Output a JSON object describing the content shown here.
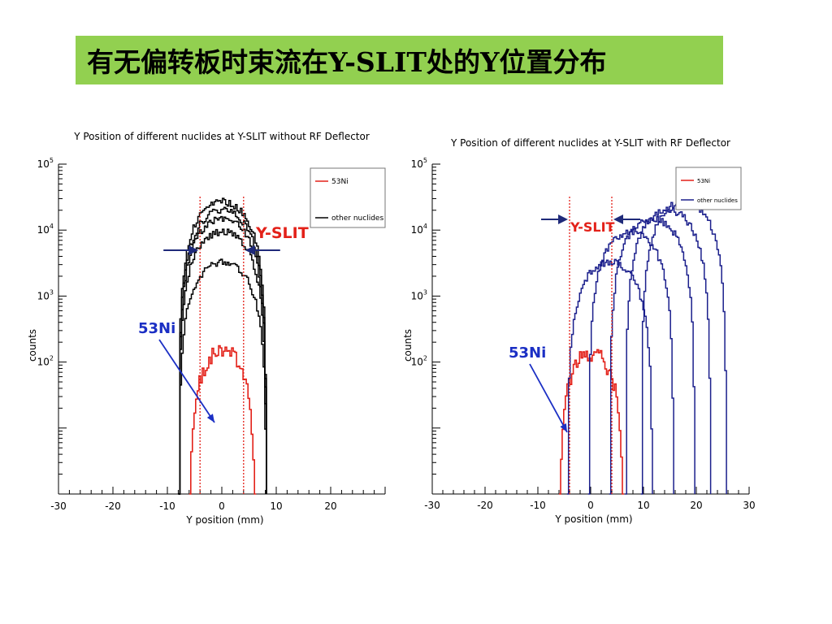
{
  "slide": {
    "title": "有无偏转板时束流在Y-SLIT处的Y位置分布"
  },
  "colors": {
    "banner": "#92d050",
    "ni53": "#e32119",
    "others_left": "#000000",
    "others_right": "#1b1f8c",
    "annotation_blue": "#1b2fc4",
    "arrow": "#1f2a7a"
  },
  "chart_data": [
    {
      "type": "line",
      "title": "Y Position of different nuclides at Y-SLIT without RF Deflector",
      "xlabel": "Y position (mm)",
      "ylabel": "counts",
      "xlim": [
        -30,
        30
      ],
      "ylim": [
        1,
        100000
      ],
      "log_y": true,
      "x_ticks": [
        "-30",
        "-20",
        "-10",
        "0",
        "10",
        "20"
      ],
      "y_ticks": [
        {
          "base": "10",
          "exp": "2",
          "value": 100
        },
        {
          "base": "10",
          "exp": "3",
          "value": 1000
        },
        {
          "base": "10",
          "exp": "4",
          "value": 10000
        },
        {
          "base": "10",
          "exp": "5",
          "value": 100000
        }
      ],
      "legend": {
        "position": "top-right",
        "entries": [
          "53Ni",
          "other nuclides"
        ]
      },
      "series": [
        {
          "name": "53Ni",
          "center": 0,
          "peak": 150,
          "half_width": 6
        },
        {
          "name": "other nuclides",
          "center": 0,
          "peak": 27000,
          "half_width": 8
        },
        {
          "name": "other nuclides",
          "center": 0,
          "peak": 20000,
          "half_width": 8
        },
        {
          "name": "other nuclides",
          "center": 0,
          "peak": 15000,
          "half_width": 8
        },
        {
          "name": "other nuclides",
          "center": 0,
          "peak": 9500,
          "half_width": 8
        },
        {
          "name": "other nuclides",
          "center": 0,
          "peak": 3300,
          "half_width": 8
        }
      ],
      "slit_lines": [
        -4,
        4
      ],
      "annotations": {
        "slit": "Y-SLIT",
        "nuclide": "53Ni"
      }
    },
    {
      "type": "line",
      "title": "Y Position of different nuclides at Y-SLIT with RF Deflector",
      "xlabel": "Y position (mm)",
      "ylabel": "counts",
      "xlim": [
        -30,
        30
      ],
      "ylim": [
        1,
        100000
      ],
      "log_y": true,
      "x_ticks": [
        "-30",
        "-20",
        "-10",
        "0",
        "10",
        "20",
        "30"
      ],
      "y_ticks": [
        {
          "base": "10",
          "exp": "2",
          "value": 100
        },
        {
          "base": "10",
          "exp": "3",
          "value": 1000
        },
        {
          "base": "10",
          "exp": "4",
          "value": 10000
        },
        {
          "base": "10",
          "exp": "5",
          "value": 100000
        }
      ],
      "legend": {
        "position": "top-right",
        "entries": [
          "53Ni",
          "other nuclides"
        ]
      },
      "series": [
        {
          "name": "53Ni",
          "center": 0,
          "peak": 140,
          "half_width": 6
        },
        {
          "name": "other nuclides",
          "center": 3.5,
          "peak": 3300,
          "half_width": 8
        },
        {
          "name": "other nuclides",
          "center": 7.5,
          "peak": 9500,
          "half_width": 8
        },
        {
          "name": "other nuclides",
          "center": 11.5,
          "peak": 15000,
          "half_width": 8
        },
        {
          "name": "other nuclides",
          "center": 14.5,
          "peak": 20000,
          "half_width": 8
        },
        {
          "name": "other nuclides",
          "center": 17.5,
          "peak": 27000,
          "half_width": 8
        }
      ],
      "slit_lines": [
        -4,
        4
      ],
      "annotations": {
        "slit": "Y-SLIT",
        "nuclide": "53Ni"
      }
    }
  ]
}
